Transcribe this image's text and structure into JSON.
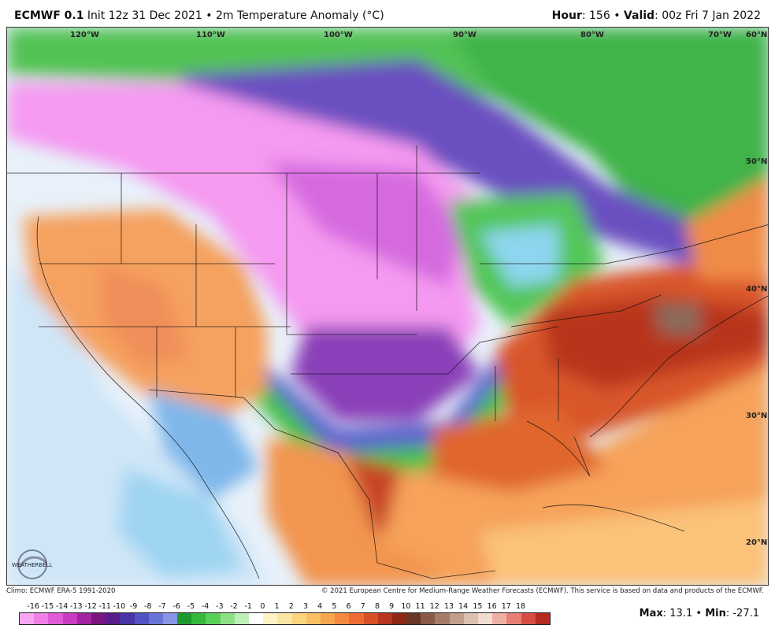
{
  "header": {
    "model": "ECMWF 0.1",
    "degree": "°",
    "init_text": "Init 12z 31 Dec 2021",
    "bullet": "•",
    "product": "2m Temperature Anomaly (°C)",
    "hour_label": "Hour",
    "hour_value": ": 156",
    "valid_label": "Valid",
    "valid_value": ": 00z Fri 7 Jan 2022"
  },
  "map": {
    "longitude_labels": [
      "120°W",
      "110°W",
      "100°W",
      "90°W",
      "80°W",
      "70°W"
    ],
    "latitude_labels": [
      "60°N",
      "50°N",
      "40°N",
      "30°N",
      "20°N"
    ]
  },
  "footer": {
    "climo": "Climo: ECMWF ERA-5 1991-2020",
    "copyright": "© 2021 European Centre for Medium-Range Weather Forecasts (ECMWF). This service is based on data and products of the ECMWF."
  },
  "colorbar": {
    "ticks": [
      "-16",
      "-15",
      "-14",
      "-13",
      "-12",
      "-11",
      "-10",
      "-9",
      "-8",
      "-7",
      "-6",
      "-5",
      "-4",
      "-3",
      "-2",
      "-1",
      "0",
      "1",
      "2",
      "3",
      "4",
      "5",
      "6",
      "7",
      "8",
      "9",
      "10",
      "11",
      "12",
      "13",
      "14",
      "15",
      "16",
      "17",
      "18"
    ],
    "colors": [
      "#f7a6f2",
      "#f07fe8",
      "#e25ad9",
      "#c83cc2",
      "#a1249f",
      "#7a1580",
      "#5a1e8c",
      "#4a34a6",
      "#5153c2",
      "#6a73d6",
      "#8795e4",
      "#1e9a2c",
      "#36b83e",
      "#5ccf58",
      "#8ee087",
      "#bdefb7",
      "#ffffff",
      "#fff2c6",
      "#fde5a3",
      "#fcd37f",
      "#fbbf63",
      "#f8a64e",
      "#f58a3e",
      "#ee6c31",
      "#d94f27",
      "#b8361f",
      "#8d2817",
      "#6b3524",
      "#8a5a48",
      "#a57b69",
      "#c29e8c",
      "#dcc0b0",
      "#f1dcd0",
      "#eeb0a5",
      "#e77f74",
      "#d64d45",
      "#b42a24"
    ]
  },
  "stats": {
    "max_label": "Max",
    "max_value": ": 13.1",
    "bullet": "•",
    "min_label": "Min",
    "min_value": ": -27.1"
  },
  "logo": {
    "text": "WEATHERBELL"
  }
}
